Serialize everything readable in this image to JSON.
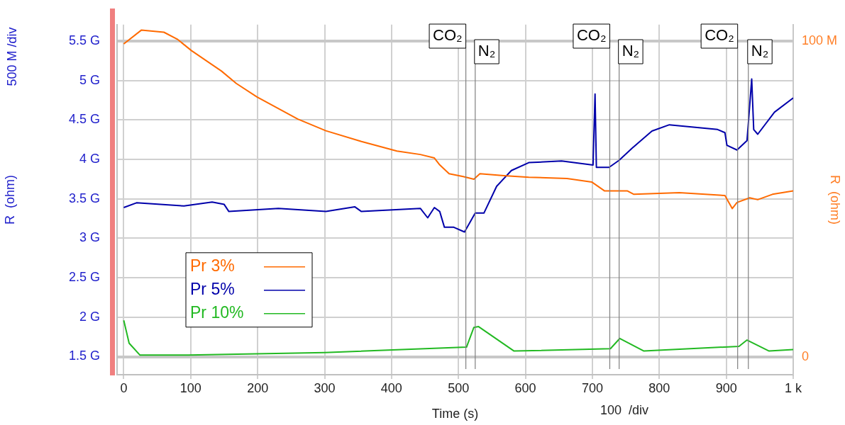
{
  "chart_data": {
    "type": "line",
    "xlabel": "Time (s)",
    "ylabel": "R  (ohm)",
    "y2label": "R  (ohm)",
    "annotations": [
      "500 M /div",
      "100  /div"
    ],
    "xlim": [
      -10,
      1000
    ],
    "xticks": [
      0,
      100,
      200,
      300,
      400,
      500,
      600,
      700,
      800,
      900,
      {
        "value": 1000,
        "label": "1 k"
      }
    ],
    "ylim": [
      1.27,
      5.71
    ],
    "yticks": [
      {
        "value": 1.5,
        "label": "1.5 G"
      },
      {
        "value": 2,
        "label": "2 G"
      },
      {
        "value": 2.5,
        "label": "2.5 G"
      },
      {
        "value": 3,
        "label": "3 G"
      },
      {
        "value": 3.5,
        "label": "3.5 G"
      },
      {
        "value": 4,
        "label": "4 G"
      },
      {
        "value": 4.5,
        "label": "4.5 G"
      },
      {
        "value": 5,
        "label": "5 G"
      },
      {
        "value": 5.5,
        "label": "5.5 G"
      }
    ],
    "y2lim": [
      -5.6,
      105.2
    ],
    "y2ticks": [
      0,
      {
        "value": 100,
        "label": "100 M"
      }
    ],
    "grid": true,
    "legend": "left",
    "marker": "none",
    "line_style": "solid",
    "ref_lines": [
      {
        "axis": "x",
        "value": 511,
        "label": "CO₂"
      },
      {
        "axis": "x",
        "value": 525,
        "label": "N₂"
      },
      {
        "axis": "x",
        "value": 726,
        "label": "CO₂"
      },
      {
        "axis": "x",
        "value": 740,
        "label": "N₂"
      },
      {
        "axis": "x",
        "value": 917,
        "label": "CO₂"
      },
      {
        "axis": "x",
        "value": 933,
        "label": "N₂"
      }
    ],
    "series": [
      {
        "name": "Pr 3%",
        "color": "#ff6a00",
        "axis": "y2",
        "x": [
          0,
          26.5,
          60,
          80,
          101,
          146,
          168,
          199,
          260,
          302,
          355,
          408,
          443,
          464,
          472,
          486,
          507,
          523,
          532,
          568,
          605,
          662,
          699,
          718,
          752,
          762,
          830,
          898,
          909,
          916,
          935,
          947,
          969,
          1000
        ],
        "values": [
          99.1,
          103.5,
          102.8,
          100.6,
          97,
          90.5,
          86.6,
          82.3,
          75.3,
          71.6,
          68.2,
          65.2,
          64.1,
          63,
          60.8,
          58,
          57.1,
          56.3,
          58,
          57.4,
          56.9,
          56.5,
          55.4,
          52.6,
          52.6,
          51.5,
          52,
          51.1,
          47,
          48.9,
          50.4,
          49.8,
          51.5,
          52.6
        ]
      },
      {
        "name": "Pr 5%",
        "color": "#0000aa",
        "x": [
          0,
          19,
          90,
          132,
          150,
          157,
          231,
          302,
          345,
          355,
          443,
          454,
          464,
          472,
          479,
          493,
          509,
          525,
          538,
          557,
          579,
          605,
          654,
          701,
          704,
          706,
          725,
          740,
          759,
          789,
          815,
          887,
          898,
          901,
          916,
          931,
          938,
          941,
          947,
          972,
          1000
        ],
        "values": [
          3.39,
          3.45,
          3.41,
          3.46,
          3.43,
          3.34,
          3.38,
          3.34,
          3.4,
          3.34,
          3.38,
          3.26,
          3.39,
          3.34,
          3.14,
          3.14,
          3.08,
          3.32,
          3.32,
          3.66,
          3.86,
          3.96,
          3.98,
          3.93,
          4.83,
          3.9,
          3.9,
          3.99,
          4.14,
          4.36,
          4.44,
          4.38,
          4.34,
          4.18,
          4.12,
          4.24,
          5.02,
          4.38,
          4.32,
          4.6,
          4.78
        ]
      },
      {
        "name": "Pr 10%",
        "color": "#22b922",
        "x": [
          0,
          8,
          24,
          97,
          300,
          512,
          523,
          530,
          583,
          727,
          741,
          777,
          919,
          931,
          964,
          1000
        ],
        "values": [
          1.96,
          1.67,
          1.52,
          1.52,
          1.55,
          1.62,
          1.87,
          1.88,
          1.57,
          1.6,
          1.73,
          1.57,
          1.63,
          1.71,
          1.57,
          1.59
        ]
      }
    ]
  }
}
